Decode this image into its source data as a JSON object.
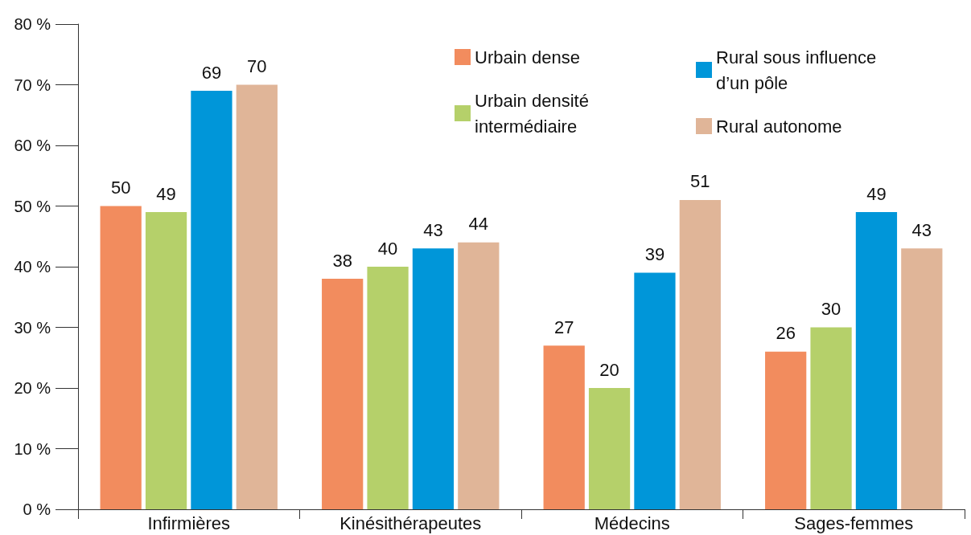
{
  "chart_data": {
    "type": "bar",
    "categories": [
      "Infirmières",
      "Kinésithérapeutes",
      "Médecins",
      "Sages-femmes"
    ],
    "series": [
      {
        "name": "Urbain dense",
        "color": "#f28c5e",
        "values": [
          50,
          38,
          27,
          26
        ]
      },
      {
        "name": "Urbain densité intermédiaire",
        "color": "#b5d06a",
        "values": [
          49,
          40,
          20,
          30
        ]
      },
      {
        "name": "Rural sous influence d’un pôle",
        "color": "#0096d9",
        "values": [
          69,
          43,
          39,
          49
        ]
      },
      {
        "name": "Rural autonome",
        "color": "#e0b598",
        "values": [
          70,
          44,
          51,
          43
        ]
      }
    ],
    "ylim": [
      0,
      80
    ],
    "yticks": [
      {
        "value": 0,
        "label": "0 %"
      },
      {
        "value": 10,
        "label": "10 %"
      },
      {
        "value": 20,
        "label": "20 %"
      },
      {
        "value": 30,
        "label": "30 %"
      },
      {
        "value": 40,
        "label": "40 %"
      },
      {
        "value": 50,
        "label": "50 %"
      },
      {
        "value": 60,
        "label": "60 %"
      },
      {
        "value": 70,
        "label": "70 %"
      },
      {
        "value": 80,
        "label": "80 %"
      }
    ],
    "data_labels": true,
    "stacked": false,
    "grid": false,
    "legend": "top right"
  }
}
